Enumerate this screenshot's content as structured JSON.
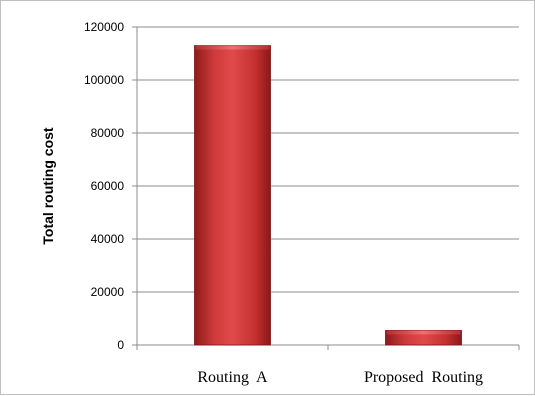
{
  "chart_data": {
    "type": "bar",
    "title": "",
    "xlabel": "",
    "ylabel": "Total routing cost",
    "categories": [
      "Routing  A",
      "Proposed  Routing"
    ],
    "values": [
      113000,
      5500
    ],
    "ylim": [
      0,
      120000
    ],
    "yticks": [
      "0",
      "20000",
      "40000",
      "60000",
      "80000",
      "100000",
      "120000"
    ],
    "grid": true,
    "legend": "none",
    "bar_color": "#c0392b"
  }
}
